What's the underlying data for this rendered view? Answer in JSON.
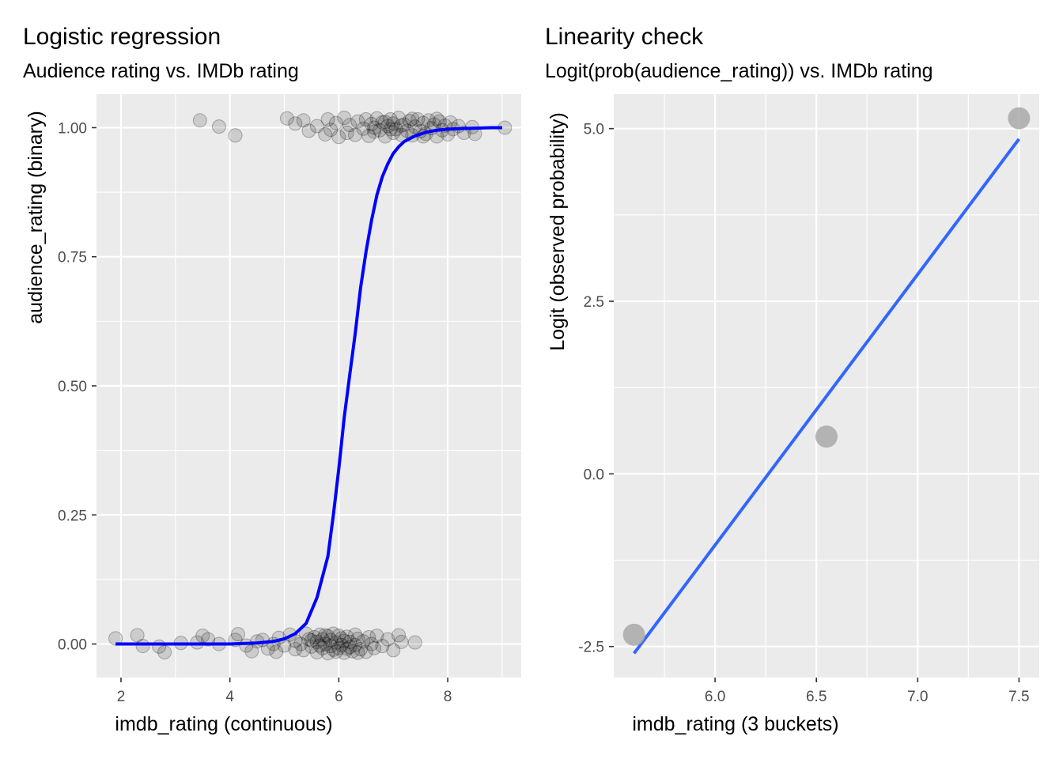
{
  "chart_data": [
    {
      "type": "scatter",
      "title": "Logistic regression",
      "subtitle": "Audience rating vs. IMDb rating",
      "xlabel": "imdb_rating (continuous)",
      "ylabel": "audience_rating (binary)",
      "xlim": [
        1.55,
        9.35
      ],
      "ylim": [
        -0.065,
        1.065
      ],
      "x_ticks": [
        2,
        4,
        6,
        8
      ],
      "x_tick_labels": [
        "2",
        "4",
        "6",
        "8"
      ],
      "y_ticks": [
        0,
        0.25,
        0.5,
        0.75,
        1
      ],
      "y_tick_labels": [
        "0.00",
        "0.25",
        "0.50",
        "0.75",
        "1.00"
      ],
      "grid": true,
      "colors": {
        "points": "#000000",
        "fit_line": "#0000ff",
        "panel": "#ebebeb",
        "grid": "#ffffff"
      },
      "points_label0": [
        [
          1.9,
          0.011
        ],
        [
          2.3,
          0.017
        ],
        [
          2.4,
          -0.004
        ],
        [
          2.7,
          -0.005
        ],
        [
          2.8,
          -0.016
        ],
        [
          3.1,
          0.002
        ],
        [
          3.4,
          0.003
        ],
        [
          3.5,
          0.016
        ],
        [
          3.6,
          0.009
        ],
        [
          3.8,
          0.0
        ],
        [
          4.1,
          0.008
        ],
        [
          4.15,
          0.019
        ],
        [
          4.3,
          -0.003
        ],
        [
          4.4,
          -0.014
        ],
        [
          4.5,
          0.005
        ],
        [
          4.6,
          0.008
        ],
        [
          4.7,
          -0.009
        ],
        [
          4.8,
          0.0
        ],
        [
          4.85,
          -0.015
        ],
        [
          4.9,
          0.012
        ],
        [
          5.0,
          -0.003
        ],
        [
          5.1,
          0.018
        ],
        [
          5.2,
          -0.01
        ],
        [
          5.2,
          0.006
        ],
        [
          5.3,
          0.0
        ],
        [
          5.35,
          -0.012
        ],
        [
          5.4,
          0.02
        ],
        [
          5.45,
          0.009
        ],
        [
          5.5,
          -0.005
        ],
        [
          5.55,
          0.013
        ],
        [
          5.6,
          -0.016
        ],
        [
          5.6,
          0.004
        ],
        [
          5.65,
          0.018
        ],
        [
          5.7,
          -0.008
        ],
        [
          5.7,
          0.009
        ],
        [
          5.75,
          0.0
        ],
        [
          5.8,
          -0.018
        ],
        [
          5.8,
          0.015
        ],
        [
          5.85,
          -0.004
        ],
        [
          5.85,
          0.008
        ],
        [
          5.9,
          0.02
        ],
        [
          5.9,
          -0.011
        ],
        [
          5.95,
          0.003
        ],
        [
          6.0,
          -0.008
        ],
        [
          6.0,
          0.016
        ],
        [
          6.05,
          -0.002
        ],
        [
          6.05,
          0.011
        ],
        [
          6.1,
          -0.017
        ],
        [
          6.1,
          0.006
        ],
        [
          6.15,
          0.014
        ],
        [
          6.2,
          -0.006
        ],
        [
          6.2,
          0.004
        ],
        [
          6.25,
          -0.014
        ],
        [
          6.3,
          0.018
        ],
        [
          6.3,
          -0.002
        ],
        [
          6.35,
          0.01
        ],
        [
          6.4,
          -0.01
        ],
        [
          6.45,
          0.005
        ],
        [
          6.5,
          -0.015
        ],
        [
          6.55,
          0.013
        ],
        [
          6.6,
          0.0
        ],
        [
          6.65,
          -0.008
        ],
        [
          6.7,
          0.016
        ],
        [
          6.8,
          -0.004
        ],
        [
          6.9,
          0.009
        ],
        [
          7.0,
          -0.012
        ],
        [
          7.1,
          0.017
        ],
        [
          7.15,
          0.004
        ],
        [
          7.4,
          0.003
        ],
        [
          5.95,
          -0.015
        ],
        [
          6.15,
          -0.009
        ],
        [
          5.75,
          0.017
        ],
        [
          5.65,
          -0.003
        ],
        [
          6.35,
          -0.017
        ],
        [
          5.5,
          0.007
        ]
      ],
      "points_label1": [
        [
          3.45,
          1.014
        ],
        [
          3.8,
          1.002
        ],
        [
          4.1,
          0.985
        ],
        [
          5.05,
          1.018
        ],
        [
          5.2,
          1.008
        ],
        [
          5.35,
          1.014
        ],
        [
          5.45,
          0.994
        ],
        [
          5.6,
          1.003
        ],
        [
          5.75,
          0.987
        ],
        [
          5.8,
          1.016
        ],
        [
          5.85,
          0.996
        ],
        [
          5.95,
          1.009
        ],
        [
          6.0,
          0.982
        ],
        [
          6.1,
          1.019
        ],
        [
          6.15,
          0.99
        ],
        [
          6.2,
          1.005
        ],
        [
          6.3,
          0.986
        ],
        [
          6.35,
          1.012
        ],
        [
          6.45,
          0.998
        ],
        [
          6.5,
          1.016
        ],
        [
          6.55,
          0.984
        ],
        [
          6.6,
          1.007
        ],
        [
          6.65,
          0.992
        ],
        [
          6.7,
          1.018
        ],
        [
          6.75,
          0.995
        ],
        [
          6.8,
          1.01
        ],
        [
          6.85,
          0.983
        ],
        [
          6.9,
          1.003
        ],
        [
          6.95,
          1.016
        ],
        [
          7.0,
          0.99
        ],
        [
          7.0,
          1.008
        ],
        [
          7.05,
          0.997
        ],
        [
          7.1,
          1.019
        ],
        [
          7.15,
          0.986
        ],
        [
          7.2,
          1.006
        ],
        [
          7.25,
          0.994
        ],
        [
          7.3,
          1.013
        ],
        [
          7.35,
          0.985
        ],
        [
          7.4,
          1.002
        ],
        [
          7.45,
          1.016
        ],
        [
          7.5,
          0.993
        ],
        [
          7.55,
          1.009
        ],
        [
          7.6,
          0.988
        ],
        [
          7.65,
          1.014
        ],
        [
          7.7,
          0.999
        ],
        [
          7.75,
          1.006
        ],
        [
          7.8,
          0.983
        ],
        [
          7.85,
          1.012
        ],
        [
          7.9,
          0.995
        ],
        [
          7.95,
          1.004
        ],
        [
          8.0,
          0.987
        ],
        [
          8.05,
          1.01
        ],
        [
          8.1,
          0.997
        ],
        [
          8.2,
          1.003
        ],
        [
          8.3,
          0.99
        ],
        [
          8.45,
          1.001
        ],
        [
          8.5,
          0.988
        ],
        [
          9.05,
          1.0
        ],
        [
          6.85,
          1.011
        ],
        [
          7.15,
          1.004
        ],
        [
          7.35,
          1.017
        ],
        [
          7.55,
          0.983
        ],
        [
          6.65,
          1.0
        ],
        [
          7.8,
          1.017
        ],
        [
          6.95,
          0.997
        ]
      ],
      "fit_curve": {
        "x": [
          1.9,
          2.5,
          3.0,
          3.5,
          4.0,
          4.5,
          4.8,
          5.0,
          5.2,
          5.4,
          5.6,
          5.8,
          5.9,
          6.0,
          6.1,
          6.2,
          6.3,
          6.4,
          6.5,
          6.6,
          6.7,
          6.8,
          6.9,
          7.0,
          7.1,
          7.2,
          7.4,
          7.6,
          7.8,
          8.0,
          8.2,
          8.5,
          8.8,
          9.0
        ],
        "y": [
          0.0,
          0.0,
          0.0,
          0.0,
          0.0,
          0.002,
          0.005,
          0.01,
          0.02,
          0.04,
          0.09,
          0.17,
          0.25,
          0.34,
          0.44,
          0.52,
          0.6,
          0.69,
          0.76,
          0.82,
          0.87,
          0.905,
          0.93,
          0.95,
          0.963,
          0.973,
          0.984,
          0.991,
          0.995,
          0.997,
          0.998,
          0.999,
          1.0,
          1.0
        ]
      }
    },
    {
      "type": "scatter",
      "title": "Linearity check",
      "subtitle": "Logit(prob(audience_rating)) vs. IMDb rating",
      "xlabel": "imdb_rating (3 buckets)",
      "ylabel": "Logit (observed probability)",
      "xlim": [
        5.5,
        7.6
      ],
      "ylim": [
        -2.95,
        5.5
      ],
      "x_ticks": [
        6.0,
        6.5,
        7.0,
        7.5
      ],
      "x_tick_labels": [
        "6.0",
        "6.5",
        "7.0",
        "7.5"
      ],
      "y_ticks": [
        -2.5,
        0.0,
        2.5,
        5.0
      ],
      "y_tick_labels": [
        "-2.5",
        "0.0",
        "2.5",
        "5.0"
      ],
      "grid": true,
      "colors": {
        "points": "#a9a9a9",
        "fit_line": "#3366ff",
        "panel": "#ebebeb",
        "grid": "#ffffff"
      },
      "points": [
        [
          5.6,
          -2.33
        ],
        [
          6.55,
          0.54
        ],
        [
          7.5,
          5.15
        ]
      ],
      "fit_line": {
        "x": [
          5.6,
          7.5
        ],
        "y": [
          -2.6,
          4.85
        ]
      }
    }
  ]
}
